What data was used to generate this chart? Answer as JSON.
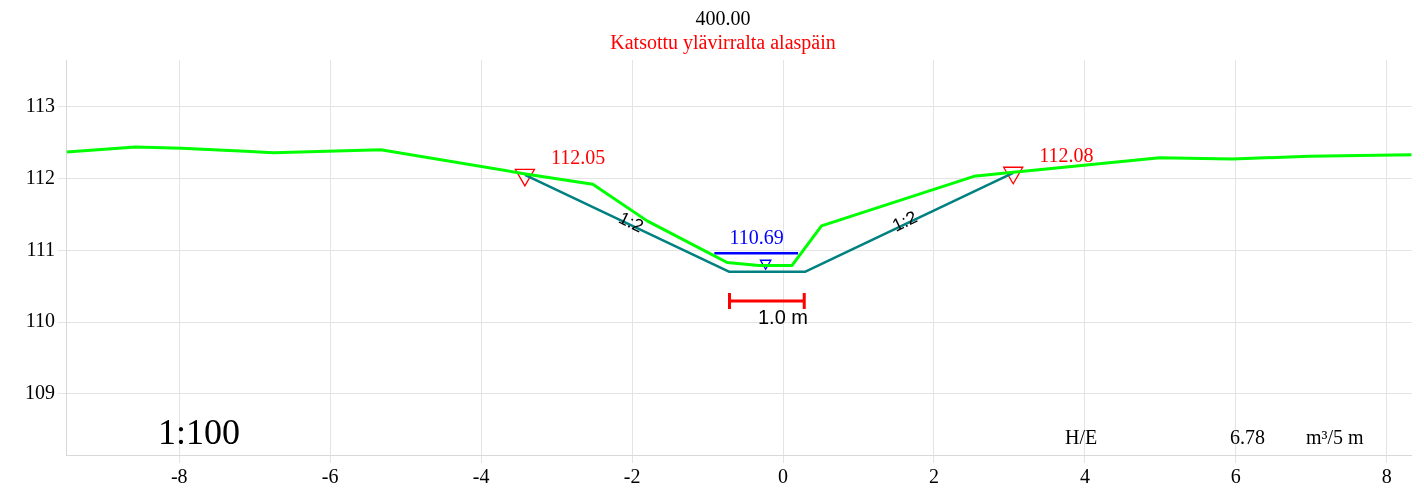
{
  "chart_data": {
    "type": "line",
    "title": "400.00",
    "subtitle": "Katsottu ylävirralta alaspäin",
    "xlim": [
      -9.5,
      8.33
    ],
    "xticks": [
      -8,
      -6,
      -4,
      -2,
      0,
      2,
      4,
      6,
      8
    ],
    "ylim": [
      108.15,
      113.65
    ],
    "yticks": [
      109,
      110,
      111,
      112,
      113
    ],
    "grid": true,
    "legend": false,
    "line_style": "solid",
    "series": [
      {
        "type": "line",
        "color": "#00ff00",
        "x": [
          -9.49,
          -8.58,
          -7.97,
          -6.75,
          -5.33,
          -3.39,
          -2.52,
          -1.8,
          -0.74,
          -0.32,
          0.12,
          0.51,
          2.53,
          3.08,
          4.99,
          5.95,
          6.97,
          8.33
        ],
        "values": [
          112.37,
          112.44,
          112.42,
          112.36,
          112.4,
          112.06,
          111.92,
          111.41,
          110.83,
          110.79,
          110.79,
          111.34,
          112.03,
          112.09,
          112.29,
          112.27,
          112.31,
          112.33
        ]
      },
      {
        "type": "line",
        "color": "#008080",
        "x": [
          -3.42,
          -0.71,
          0.29,
          3.05
        ],
        "values": [
          112.05,
          110.7,
          110.7,
          112.08
        ]
      },
      {
        "type": "line",
        "color": "#0000ff",
        "x": [
          -0.91,
          0.2
        ],
        "values": [
          110.96,
          110.96
        ]
      },
      {
        "type": "scatter",
        "color": "#0000ff",
        "marker": "triangle",
        "x": [
          -0.23
        ],
        "values": [
          110.82
        ]
      },
      {
        "type": "scatter",
        "color": "#ff0000",
        "marker": "triangle",
        "x": [
          -3.42,
          3.05
        ],
        "values": [
          112.05,
          112.08
        ]
      }
    ],
    "annotations": [
      {
        "text": "112.05",
        "x": -3.42,
        "y": 112.05
      },
      {
        "text": "112.08",
        "x": 3.05,
        "y": 112.08
      },
      {
        "text": "110.69",
        "x": -0.35,
        "y": 110.96
      },
      {
        "text": "1:2",
        "x": -2.07,
        "y": 111.38
      },
      {
        "text": "1:2",
        "x": 1.67,
        "y": 111.39
      },
      "1.0 m",
      "1:100",
      "H/E",
      "6.78",
      "m³/5 m"
    ]
  }
}
